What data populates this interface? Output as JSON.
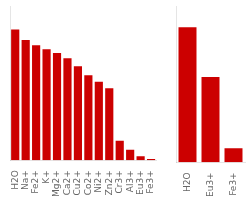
{
  "chart_data": [
    {
      "type": "bar",
      "categories": [
        "H2O",
        "Na+",
        "Fe2+",
        "K+",
        "Mg2+",
        "Ca2+",
        "Cu2+",
        "Co2+",
        "Ni2+",
        "Zn2+",
        "Cr3+",
        "Al3+",
        "Eu3+",
        "Fe3+"
      ],
      "values": [
        100,
        92,
        88,
        85,
        82,
        78,
        72,
        65,
        60,
        55,
        15,
        8,
        3,
        1
      ],
      "color": "#cc0000",
      "ylim": [
        0,
        118
      ],
      "yticks": [],
      "tick_labels": "x",
      "grid": false
    },
    {
      "type": "bar",
      "categories": [
        "H2O",
        "Eu3+",
        "Fe3+"
      ],
      "values": [
        95,
        60,
        10
      ],
      "color": "#cc0000",
      "ylim": [
        0,
        110
      ],
      "yticks": [],
      "tick_labels": "x",
      "grid": false
    }
  ]
}
